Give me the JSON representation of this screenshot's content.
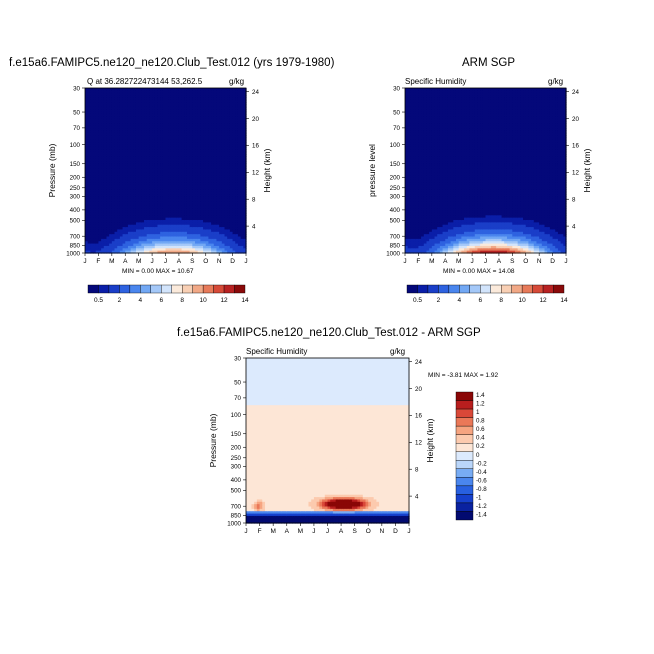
{
  "colors": {
    "scale": [
      "#04087a",
      "#0a1ea8",
      "#1a3ec8",
      "#2e62e0",
      "#4a86ee",
      "#72a8f4",
      "#a4c8f8",
      "#d2e4fb",
      "#fbeadb",
      "#f8cfb4",
      "#f1a886",
      "#e77a5a",
      "#d64a38",
      "#b82222",
      "#8a0a0a"
    ],
    "diff": [
      "#020a70",
      "#0a22a0",
      "#1640cc",
      "#2860e0",
      "#4a86ee",
      "#78acf4",
      "#bad6fa",
      "#dceafd",
      "#fde6d6",
      "#fccaae",
      "#f6a480",
      "#ea7858",
      "#d94838",
      "#b81e1e",
      "#8a0606"
    ]
  },
  "months": [
    "J",
    "F",
    "M",
    "A",
    "M",
    "J",
    "J",
    "A",
    "S",
    "O",
    "N",
    "D",
    "J"
  ],
  "pressure_ticks": [
    "30",
    "50",
    "70",
    "100",
    "150",
    "200",
    "250",
    "300",
    "400",
    "500",
    "700",
    "850",
    "1000"
  ],
  "panel1": {
    "title": "f.e15a6.FAMIPC5.ne120_ne120.Club_Test.012 (yrs 1979-1980)",
    "left_label": "Q at 36.282722473144 53,262.5",
    "units": "g/kg",
    "ylabel": "Pressure (mb)",
    "ylabel_right": "Height (km)",
    "minmax": "MIN =   0.00 MAX =  10.67"
  },
  "panel2": {
    "title": "ARM SGP",
    "left_label": "Specific Humidity",
    "units": "g/kg",
    "ylabel": "pressure level",
    "ylabel_right": "Height (km)",
    "minmax": "MIN =   0.00 MAX =  14.08"
  },
  "panel3": {
    "title": "f.e15a6.FAMIPC5.ne120_ne120.Club_Test.012 - ARM SGP",
    "left_label": "Specific Humidity",
    "units": "g/kg",
    "ylabel": "Pressure (mb)",
    "ylabel_right": "Height (km)",
    "minmax": "MIN =  -3.81 MAX =   1.92"
  },
  "chart_data": [
    {
      "type": "heatmap",
      "title": "f.e15a6.FAMIPC5.ne120_ne120.Club_Test.012 (yrs 1979-1980)",
      "subtitle": "Q at 36.282722473144 53,262.5",
      "units": "g/kg",
      "xlabel": "",
      "ylabel": "Pressure (mb)",
      "ylabel_right": "Height (km)",
      "x": [
        "J",
        "F",
        "M",
        "A",
        "M",
        "J",
        "J",
        "A",
        "S",
        "O",
        "N",
        "D",
        "J"
      ],
      "y_ticks": [
        30,
        50,
        70,
        100,
        150,
        200,
        250,
        300,
        400,
        500,
        700,
        850,
        1000
      ],
      "y_right_ticks": [
        4,
        8,
        12,
        16,
        20,
        24
      ],
      "min": 0.0,
      "max": 10.67,
      "colorbar": [
        "0.5",
        "2",
        "4",
        "6",
        "8",
        "10",
        "12",
        "14"
      ]
    },
    {
      "type": "heatmap",
      "title": "ARM SGP",
      "subtitle": "Specific Humidity",
      "units": "g/kg",
      "ylabel": "pressure level",
      "ylabel_right": "Height (km)",
      "x": [
        "J",
        "F",
        "M",
        "A",
        "M",
        "J",
        "J",
        "A",
        "S",
        "O",
        "N",
        "D",
        "J"
      ],
      "y_ticks": [
        30,
        50,
        70,
        100,
        150,
        200,
        250,
        300,
        400,
        500,
        700,
        850,
        1000
      ],
      "y_right_ticks": [
        4,
        8,
        12,
        16,
        20,
        24
      ],
      "min": 0.0,
      "max": 14.08,
      "colorbar": [
        "0.5",
        "2",
        "4",
        "6",
        "8",
        "10",
        "12",
        "14"
      ]
    },
    {
      "type": "heatmap",
      "title": "f.e15a6.FAMIPC5.ne120_ne120.Club_Test.012 - ARM SGP",
      "subtitle": "Specific Humidity",
      "units": "g/kg",
      "ylabel": "Pressure (mb)",
      "ylabel_right": "Height (km)",
      "x": [
        "J",
        "F",
        "M",
        "A",
        "M",
        "J",
        "J",
        "A",
        "S",
        "O",
        "N",
        "D",
        "J"
      ],
      "y_ticks": [
        30,
        50,
        70,
        100,
        150,
        200,
        250,
        300,
        400,
        500,
        700,
        850,
        1000
      ],
      "y_right_ticks": [
        4,
        8,
        12,
        16,
        20,
        24
      ],
      "min": -3.81,
      "max": 1.92,
      "colorbar": [
        "1.4",
        "1.2",
        "1",
        "0.8",
        "0.6",
        "0.4",
        "0.2",
        "0",
        "-0.2",
        "-0.4",
        "-0.6",
        "-0.8",
        "-1",
        "-1.2",
        "-1.4"
      ]
    }
  ]
}
